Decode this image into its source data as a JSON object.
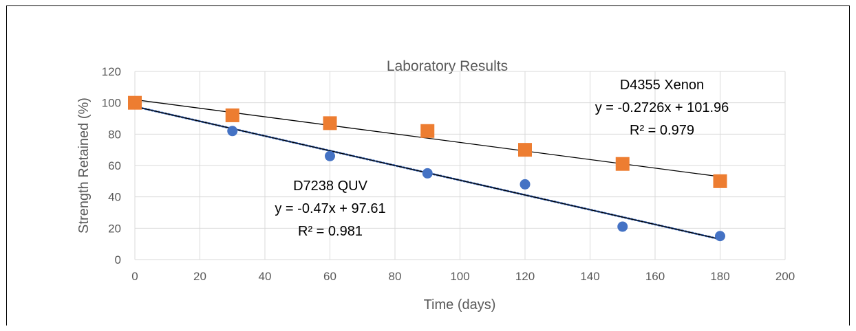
{
  "chart_data": {
    "type": "scatter",
    "title": "Laboratory Results",
    "xlabel": "Time (days)",
    "ylabel": "Strength Retained (%)",
    "xlim": [
      0,
      200
    ],
    "ylim": [
      0,
      120
    ],
    "x_ticks": [
      "0",
      "20",
      "40",
      "60",
      "80",
      "100",
      "120",
      "140",
      "160",
      "180",
      "200"
    ],
    "y_ticks": [
      "0",
      "20",
      "40",
      "60",
      "80",
      "100",
      "120"
    ],
    "grid": true,
    "legend": "none",
    "series": [
      {
        "name": "D7238 QUV",
        "color": "#4472C4",
        "marker": "circle",
        "x": [
          0,
          30,
          60,
          90,
          120,
          150,
          180
        ],
        "y": [
          100,
          82,
          66,
          55,
          48,
          21,
          15
        ],
        "trendline": {
          "slope": -0.47,
          "intercept": 97.61,
          "x_range": [
            0,
            180
          ],
          "color": "#000000",
          "style": "solid"
        },
        "dotted_trendline": {
          "color": "#4472C4",
          "style": "dotted"
        },
        "annotation": [
          "D7238 QUV",
          "y = -0.47x + 97.61",
          "R² = 0.981"
        ]
      },
      {
        "name": "D4355 Xenon",
        "color": "#ED7D31",
        "marker": "square",
        "x": [
          0,
          30,
          60,
          90,
          120,
          150,
          180
        ],
        "y": [
          100,
          92,
          87,
          82,
          70,
          61,
          50
        ],
        "trendline": {
          "slope": -0.2726,
          "intercept": 101.96,
          "x_range": [
            0,
            180
          ],
          "color": "#000000",
          "style": "solid"
        },
        "annotation": [
          "D4355 Xenon",
          "y = -0.2726x + 101.96",
          "R² = 0.979"
        ]
      }
    ]
  }
}
